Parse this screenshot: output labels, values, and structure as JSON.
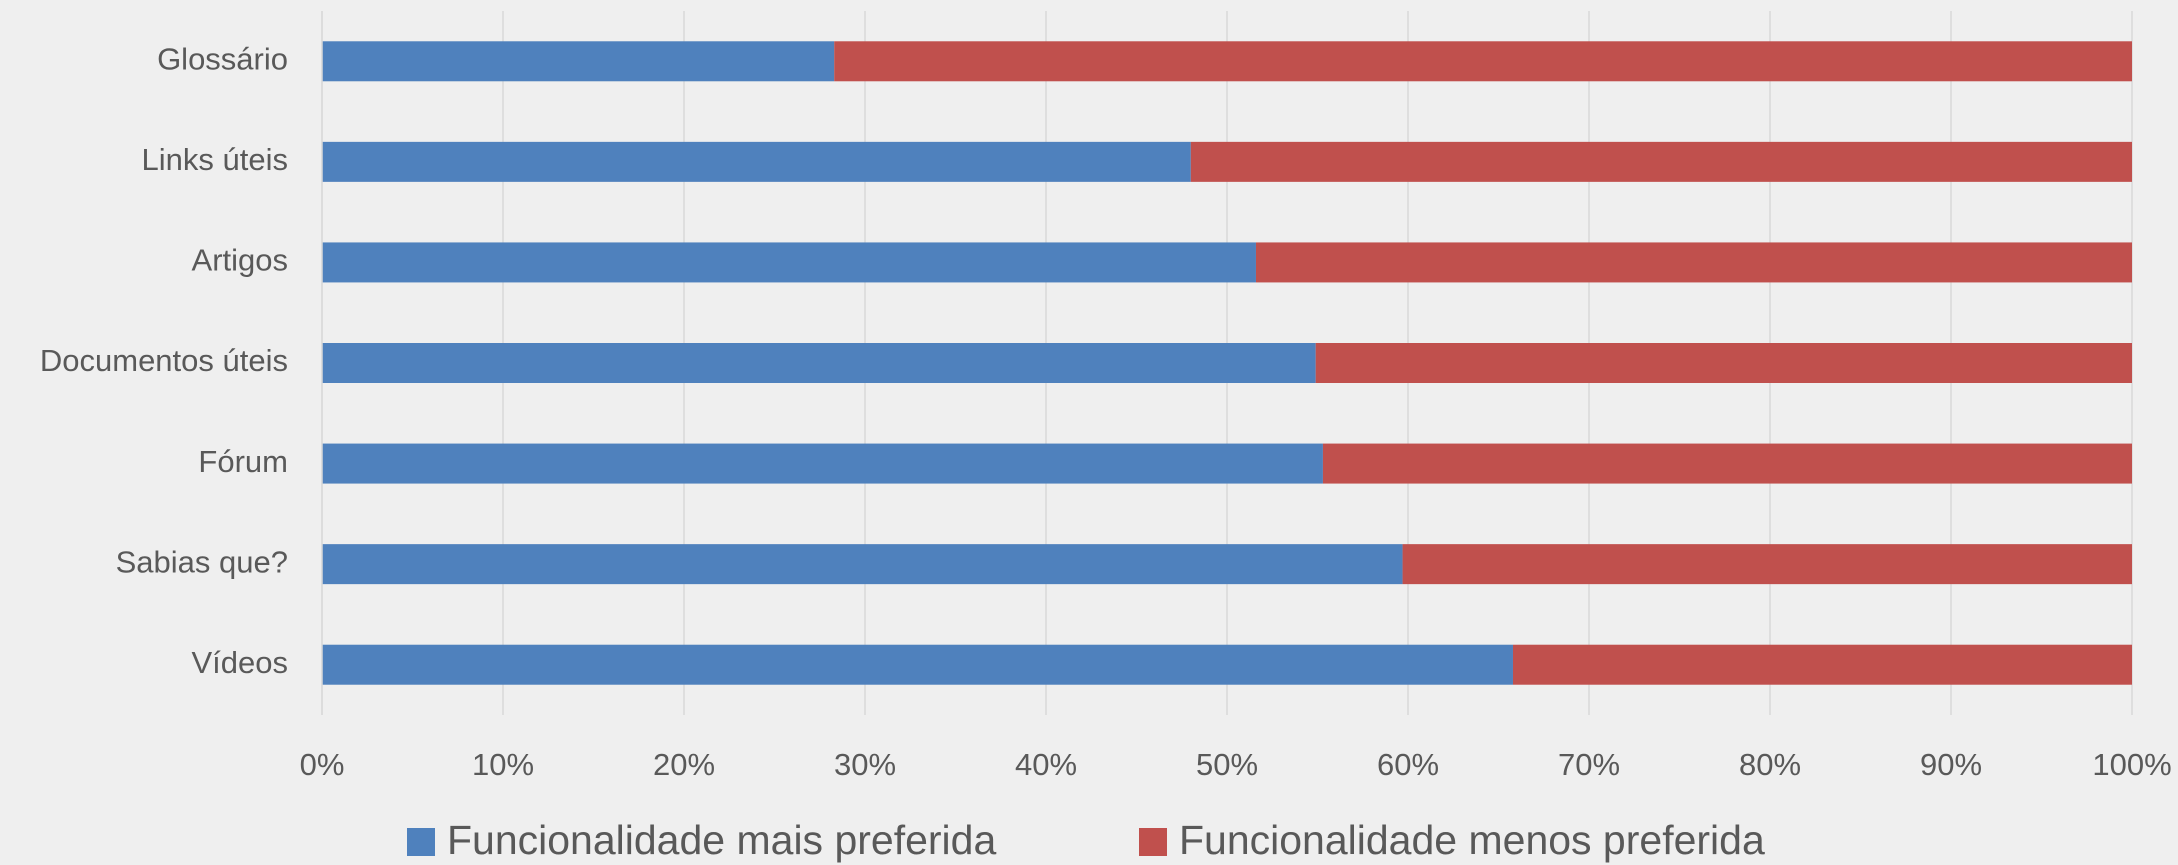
{
  "chart_data": {
    "type": "stacked-bar-horizontal",
    "categories": [
      "Glossário",
      "Links úteis",
      "Artigos",
      "Documentos úteis",
      "Fórum",
      "Sabias que?",
      "Vídeos"
    ],
    "series": [
      {
        "name": "Funcionalidade mais preferida",
        "color": "#4f81bd",
        "values": [
          28.3,
          48.0,
          51.6,
          54.9,
          55.3,
          59.7,
          65.8
        ]
      },
      {
        "name": "Funcionalidade menos preferida",
        "color": "#c0504d",
        "values": [
          71.7,
          52.0,
          48.4,
          45.1,
          44.7,
          40.3,
          34.2
        ]
      }
    ],
    "xlim": [
      0,
      100
    ],
    "xticks": [
      {
        "value": 0,
        "label": "0%"
      },
      {
        "value": 10,
        "label": "10%"
      },
      {
        "value": 20,
        "label": "20%"
      },
      {
        "value": 30,
        "label": "30%"
      },
      {
        "value": 40,
        "label": "40%"
      },
      {
        "value": 50,
        "label": "50%"
      },
      {
        "value": 60,
        "label": "60%"
      },
      {
        "value": 70,
        "label": "70%"
      },
      {
        "value": 80,
        "label": "80%"
      },
      {
        "value": 90,
        "label": "90%"
      },
      {
        "value": 100,
        "label": "100%"
      }
    ],
    "grid": true,
    "legend": "bottom"
  }
}
